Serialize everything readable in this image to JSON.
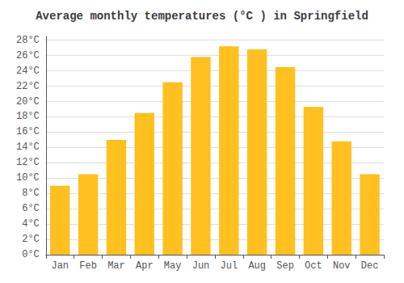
{
  "chart_data": {
    "type": "bar",
    "title": "Average monthly temperatures (°C ) in Springfield",
    "categories": [
      "Jan",
      "Feb",
      "Mar",
      "Apr",
      "May",
      "Jun",
      "Jul",
      "Aug",
      "Sep",
      "Oct",
      "Nov",
      "Dec"
    ],
    "values": [
      9.0,
      10.5,
      15.0,
      18.5,
      22.5,
      25.8,
      27.2,
      26.8,
      24.5,
      19.3,
      14.8,
      10.5
    ],
    "color": "#FFC020",
    "ylim": [
      0,
      28.5
    ],
    "yticks": [
      {
        "value": 0,
        "label": "0°C"
      },
      {
        "value": 2,
        "label": "2°C"
      },
      {
        "value": 4,
        "label": "4°C"
      },
      {
        "value": 6,
        "label": "6°C"
      },
      {
        "value": 8,
        "label": "8°C"
      },
      {
        "value": 10,
        "label": "10°C"
      },
      {
        "value": 12,
        "label": "12°C"
      },
      {
        "value": 14,
        "label": "14°C"
      },
      {
        "value": 16,
        "label": "16°C"
      },
      {
        "value": 18,
        "label": "18°C"
      },
      {
        "value": 20,
        "label": "20°C"
      },
      {
        "value": 22,
        "label": "22°C"
      },
      {
        "value": 24,
        "label": "24°C"
      },
      {
        "value": 26,
        "label": "26°C"
      },
      {
        "value": 28,
        "label": "28°C"
      }
    ],
    "grid": true
  }
}
